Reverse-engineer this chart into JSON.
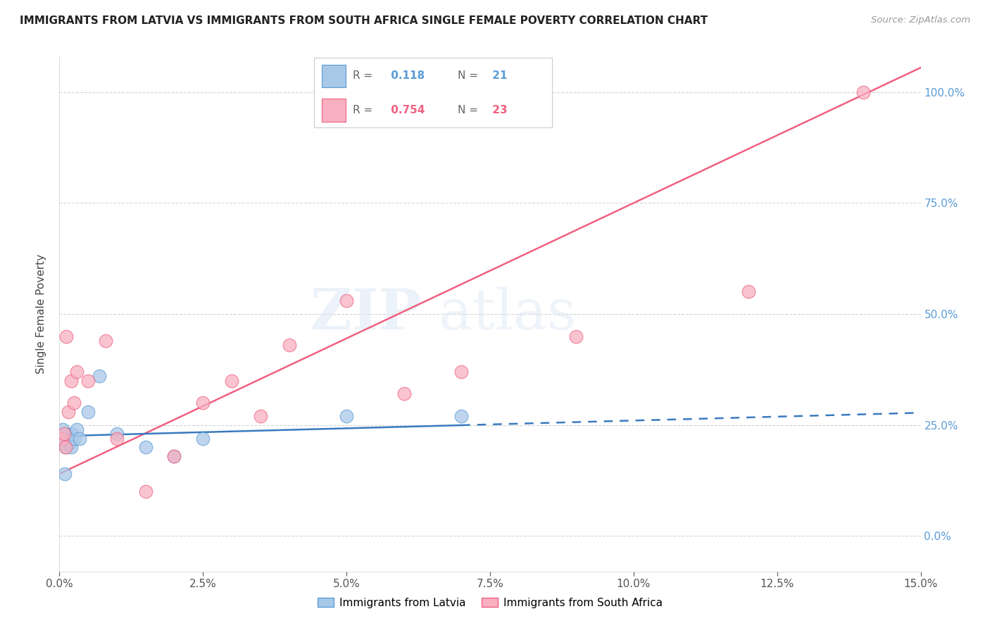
{
  "title": "IMMIGRANTS FROM LATVIA VS IMMIGRANTS FROM SOUTH AFRICA SINGLE FEMALE POVERTY CORRELATION CHART",
  "source": "Source: ZipAtlas.com",
  "ylabel": "Single Female Poverty",
  "xlabel_vals": [
    0.0,
    2.5,
    5.0,
    7.5,
    10.0,
    12.5,
    15.0
  ],
  "ylabel_vals": [
    0,
    25,
    50,
    75,
    100
  ],
  "xmin": 0.0,
  "xmax": 15.0,
  "ymin": -8,
  "ymax": 108,
  "latvia_color": "#a8c8e8",
  "latvia_edge": "#5b9bd5",
  "sa_color": "#f8b0c0",
  "sa_edge": "#f06080",
  "latvia_R": 0.118,
  "latvia_N": 21,
  "sa_R": 0.754,
  "sa_N": 23,
  "legend_label_latvia": "Immigrants from Latvia",
  "legend_label_sa": "Immigrants from South Africa",
  "watermark": "ZIPatlas",
  "latvia_x": [
    0.05,
    0.08,
    0.1,
    0.12,
    0.15,
    0.18,
    0.2,
    0.22,
    0.25,
    0.3,
    0.35,
    0.5,
    0.7,
    1.0,
    1.5,
    2.0,
    2.5,
    5.0,
    7.0,
    0.06,
    0.09
  ],
  "latvia_y": [
    22,
    21,
    20,
    23,
    22,
    21,
    20,
    23,
    22,
    24,
    22,
    28,
    36,
    23,
    20,
    18,
    22,
    27,
    27,
    24,
    14
  ],
  "sa_x": [
    0.05,
    0.08,
    0.1,
    0.15,
    0.2,
    0.25,
    0.3,
    0.5,
    0.8,
    1.0,
    1.5,
    2.0,
    2.5,
    3.0,
    3.5,
    4.0,
    5.0,
    6.0,
    7.0,
    9.0,
    12.0,
    14.0,
    0.12
  ],
  "sa_y": [
    22,
    23,
    20,
    28,
    35,
    30,
    37,
    35,
    44,
    22,
    10,
    18,
    30,
    35,
    27,
    43,
    53,
    32,
    37,
    45,
    55,
    100,
    45
  ],
  "lv_line_intercept": 22.5,
  "lv_line_slope": 0.35,
  "sa_line_intercept": 14.0,
  "sa_line_slope": 6.1,
  "lv_solid_end": 7.0,
  "lv_dash_end": 15.0
}
